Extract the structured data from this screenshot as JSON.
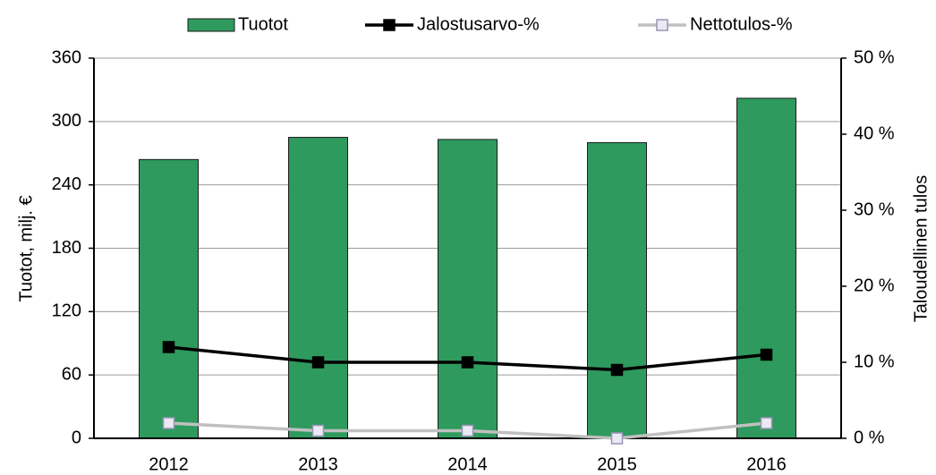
{
  "chart_data": {
    "type": "bar",
    "categories": [
      "2012",
      "2013",
      "2014",
      "2015",
      "2016"
    ],
    "series": [
      {
        "name": "Tuotot",
        "type": "bar",
        "color": "#2e9a5e",
        "values": [
          264,
          285,
          283,
          280,
          322
        ]
      },
      {
        "name": "Jalostusarvo-%",
        "type": "line",
        "axis": "y2",
        "color": "#000000",
        "marker_fill": "#000000",
        "values": [
          12,
          10,
          10,
          9,
          11
        ]
      },
      {
        "name": "Nettotulos-%",
        "type": "line",
        "axis": "y2",
        "color": "#c0c0c0",
        "marker_fill": "#ece8f4",
        "values": [
          2,
          1,
          1,
          0,
          2
        ]
      }
    ],
    "ylabel": "Tuotot, milj. €",
    "y2label": "Taloudellinen tulos",
    "ylim": [
      0,
      360
    ],
    "yticks": [
      0,
      60,
      120,
      180,
      240,
      300,
      360
    ],
    "y2lim": [
      0,
      50
    ],
    "y2ticks": [
      {
        "value": 0,
        "label": "0 %"
      },
      {
        "value": 10,
        "label": "10 %"
      },
      {
        "value": 20,
        "label": "20 %"
      },
      {
        "value": 30,
        "label": "30 %"
      },
      {
        "value": 40,
        "label": "40 %"
      },
      {
        "value": 50,
        "label": "50 %"
      }
    ],
    "grid": true,
    "legend": "top"
  }
}
